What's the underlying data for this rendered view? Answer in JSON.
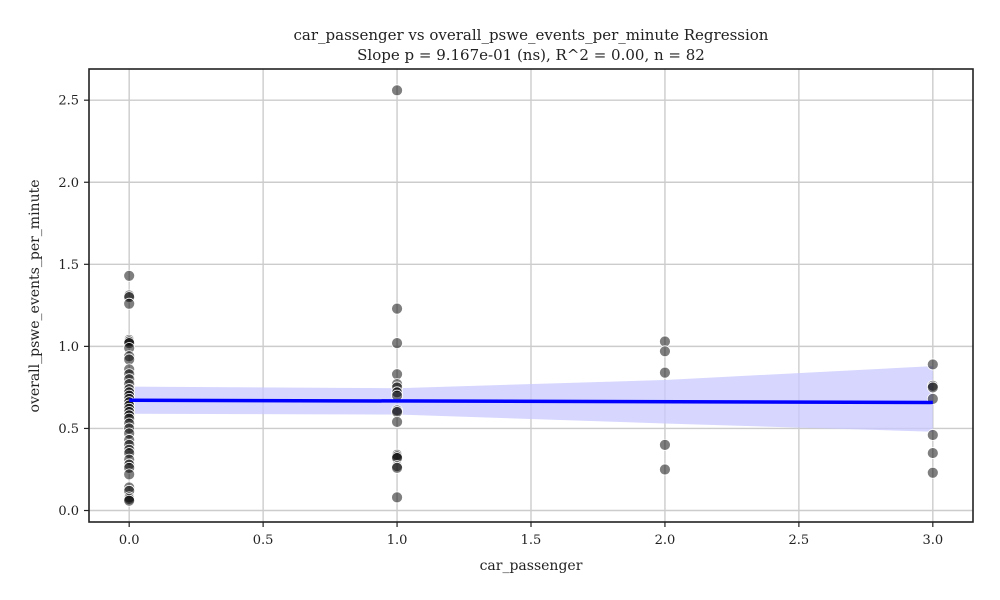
{
  "chart_data": {
    "type": "scatter",
    "title": "car_passenger vs overall_pswe_events_per_minute Regression",
    "subtitle": "Slope p = 9.167e-01 (ns), R^2 = 0.00, n = 82",
    "xlabel": "car_passenger",
    "ylabel": "overall_pswe_events_per_minute",
    "xlim": [
      -0.15,
      3.15
    ],
    "ylim": [
      -0.07,
      2.69
    ],
    "xticks": [
      "0.0",
      "0.5",
      "1.0",
      "1.5",
      "2.0",
      "2.5",
      "3.0"
    ],
    "yticks": [
      "0.0",
      "0.5",
      "1.0",
      "1.5",
      "2.0",
      "2.5"
    ],
    "grid": true,
    "points": [
      {
        "x": 0,
        "y": 1.43
      },
      {
        "x": 0,
        "y": 1.31
      },
      {
        "x": 0,
        "y": 1.3
      },
      {
        "x": 0,
        "y": 1.26
      },
      {
        "x": 0,
        "y": 1.04
      },
      {
        "x": 0,
        "y": 1.03
      },
      {
        "x": 0,
        "y": 1.02
      },
      {
        "x": 0,
        "y": 0.99
      },
      {
        "x": 0,
        "y": 0.94
      },
      {
        "x": 0,
        "y": 0.92
      },
      {
        "x": 0,
        "y": 0.86
      },
      {
        "x": 0,
        "y": 0.83
      },
      {
        "x": 0,
        "y": 0.8
      },
      {
        "x": 0,
        "y": 0.77
      },
      {
        "x": 0,
        "y": 0.74
      },
      {
        "x": 0,
        "y": 0.72
      },
      {
        "x": 0,
        "y": 0.7
      },
      {
        "x": 0,
        "y": 0.68
      },
      {
        "x": 0,
        "y": 0.66
      },
      {
        "x": 0,
        "y": 0.64
      },
      {
        "x": 0,
        "y": 0.62
      },
      {
        "x": 0,
        "y": 0.6
      },
      {
        "x": 0,
        "y": 0.58
      },
      {
        "x": 0,
        "y": 0.56
      },
      {
        "x": 0,
        "y": 0.53
      },
      {
        "x": 0,
        "y": 0.5
      },
      {
        "x": 0,
        "y": 0.47
      },
      {
        "x": 0,
        "y": 0.43
      },
      {
        "x": 0,
        "y": 0.4
      },
      {
        "x": 0,
        "y": 0.37
      },
      {
        "x": 0,
        "y": 0.35
      },
      {
        "x": 0,
        "y": 0.31
      },
      {
        "x": 0,
        "y": 0.28
      },
      {
        "x": 0,
        "y": 0.26
      },
      {
        "x": 0,
        "y": 0.22
      },
      {
        "x": 0,
        "y": 0.14
      },
      {
        "x": 0,
        "y": 0.12
      },
      {
        "x": 0,
        "y": 0.08
      },
      {
        "x": 0,
        "y": 0.07
      },
      {
        "x": 0,
        "y": 0.06
      },
      {
        "x": 1,
        "y": 2.56
      },
      {
        "x": 1,
        "y": 1.23
      },
      {
        "x": 1,
        "y": 1.02
      },
      {
        "x": 1,
        "y": 0.83
      },
      {
        "x": 1,
        "y": 0.77
      },
      {
        "x": 1,
        "y": 0.75
      },
      {
        "x": 1,
        "y": 0.72
      },
      {
        "x": 1,
        "y": 0.7
      },
      {
        "x": 1,
        "y": 0.61
      },
      {
        "x": 1,
        "y": 0.6
      },
      {
        "x": 1,
        "y": 0.54
      },
      {
        "x": 1,
        "y": 0.34
      },
      {
        "x": 1,
        "y": 0.33
      },
      {
        "x": 1,
        "y": 0.32
      },
      {
        "x": 1,
        "y": 0.27
      },
      {
        "x": 1,
        "y": 0.26
      },
      {
        "x": 1,
        "y": 0.08
      },
      {
        "x": 2,
        "y": 1.03
      },
      {
        "x": 2,
        "y": 0.97
      },
      {
        "x": 2,
        "y": 0.84
      },
      {
        "x": 2,
        "y": 0.4
      },
      {
        "x": 2,
        "y": 0.25
      },
      {
        "x": 3,
        "y": 0.89
      },
      {
        "x": 3,
        "y": 0.76
      },
      {
        "x": 3,
        "y": 0.75
      },
      {
        "x": 3,
        "y": 0.68
      },
      {
        "x": 3,
        "y": 0.46
      },
      {
        "x": 3,
        "y": 0.35
      },
      {
        "x": 3,
        "y": 0.23
      }
    ],
    "regression_line": {
      "x": [
        0,
        3
      ],
      "y": [
        0.672,
        0.658
      ]
    },
    "confidence_band": {
      "x": [
        0,
        1,
        2,
        3
      ],
      "lower": [
        0.59,
        0.585,
        0.53,
        0.48
      ],
      "upper": [
        0.755,
        0.745,
        0.795,
        0.88
      ]
    },
    "colors": {
      "points": "#000000",
      "line": "#0000ff",
      "band": "#c8c8ff",
      "grid": "#cccccc",
      "axes": "#222222"
    }
  }
}
